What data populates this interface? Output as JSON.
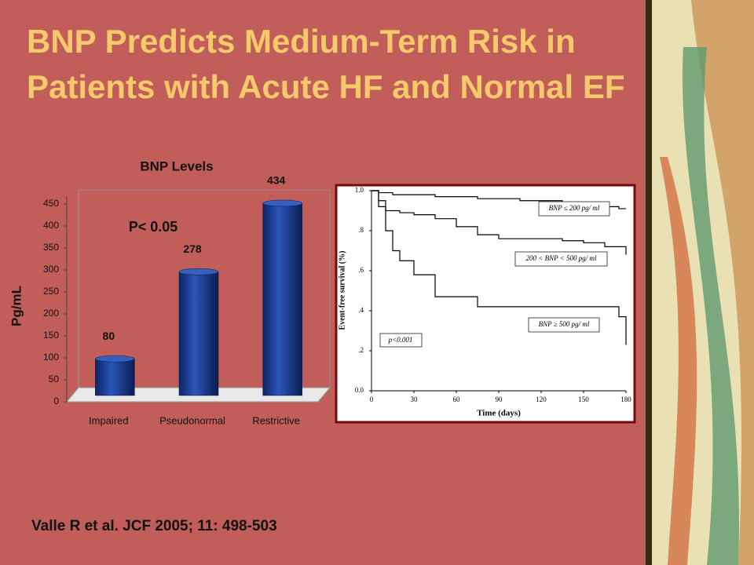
{
  "title": "BNP Predicts Medium-Term Risk in Patients with Acute HF and Normal EF",
  "citation": "Valle R et al. JCF 2005; 11: 498-503",
  "chart_data": [
    {
      "type": "bar",
      "title": "BNP Levels",
      "ylabel": "Pg/mL",
      "annotation": "P< 0.05",
      "categories": [
        "Impaired",
        "Pseudonormal",
        "Restrictive"
      ],
      "values": [
        80,
        278,
        434
      ],
      "color": "#1c3f94",
      "ylim": [
        0,
        450
      ],
      "yticks": [
        0,
        50,
        100,
        150,
        200,
        250,
        300,
        350,
        400,
        450
      ]
    },
    {
      "type": "line",
      "step": true,
      "xlabel": "Time (days)",
      "ylabel": "Event-free survival (%)",
      "annotation": "p<0.001",
      "x": [
        0,
        5,
        10,
        15,
        20,
        30,
        45,
        60,
        75,
        90,
        105,
        120,
        135,
        150,
        165,
        175,
        180
      ],
      "series": [
        {
          "name": "BNP ≤ 200 pg/ ml",
          "color": "#000000",
          "values": [
            1.0,
            0.99,
            0.99,
            0.98,
            0.98,
            0.98,
            0.97,
            0.97,
            0.96,
            0.96,
            0.95,
            0.95,
            0.94,
            0.93,
            0.92,
            0.91,
            0.91
          ]
        },
        {
          "name": "200 < BNP < 500 pg/ ml",
          "color": "#000000",
          "values": [
            1.0,
            0.95,
            0.9,
            0.9,
            0.89,
            0.88,
            0.86,
            0.82,
            0.78,
            0.76,
            0.76,
            0.76,
            0.75,
            0.74,
            0.72,
            0.72,
            0.68
          ]
        },
        {
          "name": "BNP ≥ 500 pg/ ml",
          "color": "#000000",
          "values": [
            1.0,
            0.92,
            0.8,
            0.7,
            0.65,
            0.58,
            0.47,
            0.47,
            0.42,
            0.42,
            0.42,
            0.42,
            0.42,
            0.42,
            0.42,
            0.37,
            0.23
          ]
        }
      ],
      "xlim": [
        0,
        180
      ],
      "xticks": [
        0,
        30,
        60,
        90,
        120,
        150,
        180
      ],
      "ylim": [
        0,
        1
      ],
      "yticks": [
        {
          "value": 0,
          "label": "0.0"
        },
        {
          "value": 0.2,
          "label": ".2"
        },
        {
          "value": 0.4,
          "label": ".4"
        },
        {
          "value": 0.6,
          "label": ".6"
        },
        {
          "value": 0.8,
          "label": ".8"
        },
        {
          "value": 1,
          "label": "1.0"
        }
      ]
    }
  ]
}
